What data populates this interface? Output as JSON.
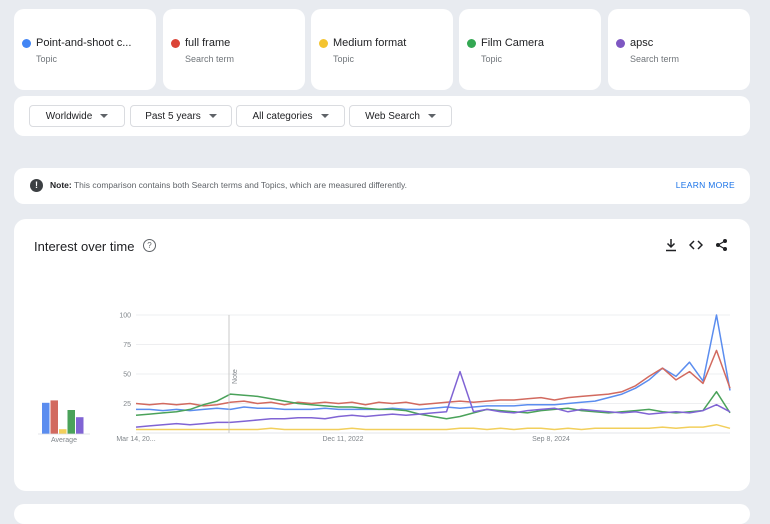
{
  "terms": [
    {
      "name": "Point-and-shoot c...",
      "type": "Topic",
      "color": "#4285f4"
    },
    {
      "name": "full frame",
      "type": "Search term",
      "color": "#db4437"
    },
    {
      "name": "Medium format",
      "type": "Topic",
      "color": "#f4b400"
    },
    {
      "name": "Film Camera",
      "type": "Topic",
      "color": "#0f9d58"
    },
    {
      "name": "apsc",
      "type": "Search term",
      "color": "#7b55d9"
    }
  ],
  "filters": [
    "Worldwide",
    "Past 5 years",
    "All categories",
    "Web Search"
  ],
  "note": {
    "label": "Note:",
    "text": "This comparison contains both Search terms and Topics, which are measured differently.",
    "link": "LEARN MORE"
  },
  "interest": {
    "title": "Interest over time",
    "help_icon": "?",
    "average_label": "Average",
    "note_marker": "Note",
    "icons": [
      "download-icon",
      "embed-icon",
      "share-icon"
    ]
  },
  "chart_data": {
    "type": "line",
    "y_ticks": [
      "100",
      "75",
      "50",
      "25"
    ],
    "ylim": [
      0,
      100
    ],
    "x_tick_labels": [
      "Mar 14, 20...",
      "Dec 11, 2022",
      "Sep 8, 2024"
    ],
    "x_range": [
      "Mar 14, 2021",
      "Mar 2026"
    ],
    "grid": true,
    "averages": [
      {
        "name": "Point-and-shoot c...",
        "value": 26
      },
      {
        "name": "full frame",
        "value": 28
      },
      {
        "name": "Medium format",
        "value": 4
      },
      {
        "name": "Film Camera",
        "value": 20
      },
      {
        "name": "apsc",
        "value": 14
      }
    ],
    "series": [
      {
        "name": "Point-and-shoot c...",
        "values": [
          20,
          20,
          19,
          20,
          19,
          20,
          21,
          20,
          22,
          21,
          21,
          20,
          20,
          20,
          21,
          20,
          20,
          20,
          20,
          21,
          20,
          20,
          21,
          22,
          21,
          22,
          23,
          23,
          23,
          24,
          24,
          24,
          25,
          26,
          27,
          30,
          33,
          38,
          45,
          55,
          48,
          60,
          44,
          100,
          36
        ]
      },
      {
        "name": "full frame",
        "values": [
          25,
          24,
          25,
          24,
          25,
          23,
          24,
          26,
          27,
          25,
          26,
          24,
          26,
          25,
          26,
          25,
          26,
          24,
          26,
          25,
          26,
          24,
          25,
          26,
          27,
          26,
          27,
          28,
          28,
          29,
          30,
          28,
          30,
          31,
          32,
          33,
          35,
          40,
          48,
          55,
          45,
          52,
          42,
          70,
          38
        ]
      },
      {
        "name": "Medium format",
        "values": [
          3,
          3,
          3,
          3,
          3,
          3,
          3,
          3,
          3,
          3,
          4,
          3,
          3,
          3,
          3,
          3,
          4,
          3,
          3,
          3,
          3,
          3,
          3,
          3,
          4,
          4,
          3,
          4,
          3,
          4,
          4,
          3,
          4,
          3,
          4,
          4,
          4,
          4,
          4,
          5,
          4,
          5,
          5,
          7,
          4
        ]
      },
      {
        "name": "Film Camera",
        "values": [
          15,
          16,
          17,
          18,
          20,
          24,
          27,
          33,
          32,
          31,
          29,
          27,
          25,
          24,
          23,
          22,
          22,
          21,
          20,
          20,
          19,
          16,
          14,
          12,
          14,
          17,
          20,
          19,
          18,
          17,
          19,
          20,
          21,
          19,
          18,
          17,
          18,
          19,
          20,
          18,
          17,
          18,
          19,
          35,
          17
        ]
      },
      {
        "name": "apsc",
        "values": [
          5,
          6,
          7,
          8,
          7,
          8,
          9,
          9,
          10,
          11,
          12,
          12,
          13,
          13,
          12,
          14,
          15,
          14,
          15,
          16,
          15,
          16,
          17,
          18,
          52,
          18,
          20,
          18,
          17,
          19,
          20,
          21,
          18,
          20,
          19,
          18,
          17,
          18,
          16,
          17,
          18,
          17,
          19,
          24,
          18
        ]
      }
    ]
  }
}
